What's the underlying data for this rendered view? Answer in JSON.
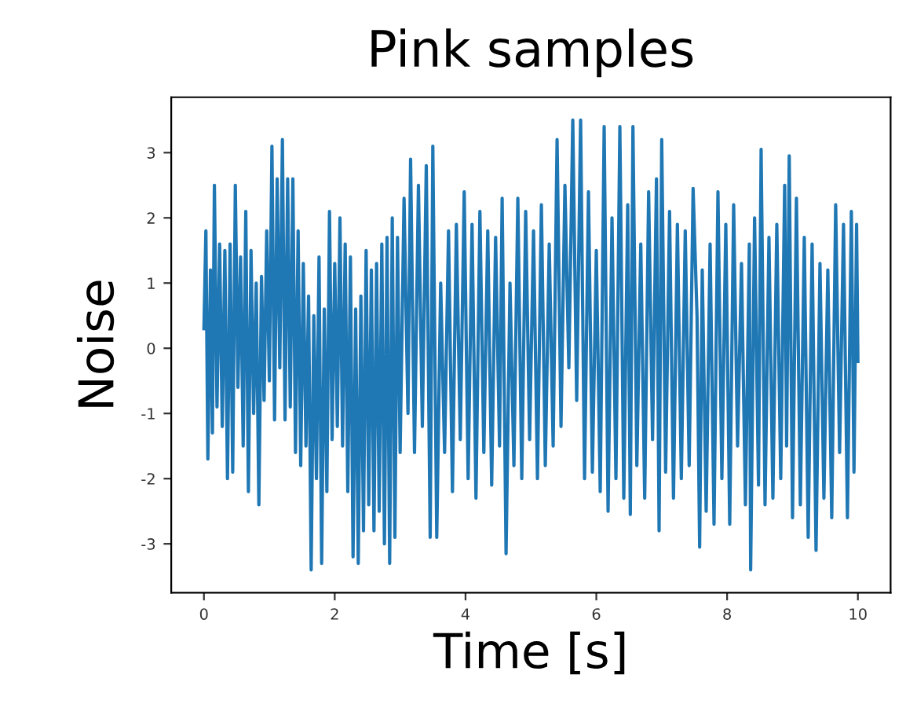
{
  "chart_data": {
    "type": "line",
    "title": "Pink samples",
    "xlabel": "Time [s]",
    "ylabel": "Noise",
    "xlim": [
      -0.5,
      10.5
    ],
    "ylim": [
      -3.75,
      3.85
    ],
    "xticks": [
      0,
      2,
      4,
      6,
      8,
      10
    ],
    "yticks": [
      -3,
      -2,
      -1,
      0,
      1,
      2,
      3
    ],
    "grid": false,
    "legend": false,
    "series": [
      {
        "color": "#1f77b4",
        "x": [
          0.0,
          0.03,
          0.06,
          0.1,
          0.13,
          0.16,
          0.2,
          0.24,
          0.28,
          0.32,
          0.36,
          0.4,
          0.44,
          0.48,
          0.52,
          0.56,
          0.6,
          0.64,
          0.68,
          0.72,
          0.76,
          0.8,
          0.84,
          0.88,
          0.92,
          0.96,
          1.0,
          1.04,
          1.08,
          1.12,
          1.16,
          1.2,
          1.24,
          1.28,
          1.32,
          1.36,
          1.4,
          1.44,
          1.48,
          1.52,
          1.56,
          1.6,
          1.64,
          1.68,
          1.72,
          1.76,
          1.8,
          1.84,
          1.88,
          1.92,
          1.96,
          2.0,
          2.04,
          2.08,
          2.12,
          2.16,
          2.2,
          2.24,
          2.28,
          2.32,
          2.36,
          2.4,
          2.44,
          2.48,
          2.52,
          2.56,
          2.6,
          2.64,
          2.68,
          2.72,
          2.76,
          2.8,
          2.84,
          2.88,
          2.92,
          2.96,
          3.0,
          3.06,
          3.12,
          3.16,
          3.22,
          3.28,
          3.34,
          3.4,
          3.46,
          3.5,
          3.56,
          3.62,
          3.68,
          3.74,
          3.8,
          3.86,
          3.92,
          3.98,
          4.04,
          4.1,
          4.16,
          4.22,
          4.28,
          4.34,
          4.4,
          4.46,
          4.52,
          4.56,
          4.62,
          4.68,
          4.74,
          4.8,
          4.86,
          4.92,
          4.98,
          5.04,
          5.1,
          5.16,
          5.22,
          5.28,
          5.34,
          5.4,
          5.46,
          5.52,
          5.58,
          5.64,
          5.7,
          5.76,
          5.82,
          5.88,
          5.94,
          6.0,
          6.06,
          6.12,
          6.18,
          6.24,
          6.3,
          6.36,
          6.42,
          6.48,
          6.52,
          6.56,
          6.62,
          6.68,
          6.74,
          6.8,
          6.86,
          6.92,
          6.96,
          7.0,
          7.06,
          7.12,
          7.18,
          7.24,
          7.3,
          7.36,
          7.42,
          7.48,
          7.54,
          7.58,
          7.62,
          7.68,
          7.74,
          7.8,
          7.86,
          7.92,
          7.98,
          8.04,
          8.1,
          8.16,
          8.22,
          8.28,
          8.34,
          8.36,
          8.42,
          8.48,
          8.52,
          8.58,
          8.64,
          8.7,
          8.76,
          8.82,
          8.88,
          8.91,
          8.95,
          9.0,
          9.06,
          9.12,
          9.18,
          9.24,
          9.3,
          9.36,
          9.42,
          9.48,
          9.54,
          9.6,
          9.66,
          9.72,
          9.78,
          9.84,
          9.9,
          9.94,
          9.98,
          10.0
        ],
        "values": [
          0.3,
          1.8,
          -1.7,
          1.2,
          -1.3,
          2.5,
          -0.9,
          1.6,
          -1.2,
          1.5,
          -2.0,
          1.6,
          -1.9,
          2.5,
          -0.6,
          1.4,
          -1.5,
          2.1,
          -2.2,
          1.5,
          -1.0,
          1.0,
          -2.4,
          1.1,
          -0.8,
          1.8,
          -0.5,
          3.1,
          -1.1,
          2.6,
          -0.3,
          3.2,
          -1.1,
          2.6,
          -0.9,
          2.6,
          -1.6,
          1.8,
          -1.8,
          1.3,
          -1.5,
          0.8,
          -3.4,
          0.5,
          -2.0,
          1.4,
          -3.3,
          0.6,
          -2.2,
          2.1,
          -1.4,
          1.3,
          -1.2,
          2.0,
          -1.5,
          1.6,
          -2.2,
          1.4,
          -3.2,
          0.6,
          -3.3,
          0.8,
          -2.8,
          1.5,
          -2.4,
          1.2,
          -2.8,
          1.3,
          -2.5,
          1.6,
          -3.0,
          1.7,
          -3.3,
          2.0,
          -2.9,
          1.7,
          -1.6,
          2.3,
          -1.0,
          2.9,
          -1.6,
          2.5,
          -1.2,
          2.8,
          -2.9,
          3.1,
          -2.9,
          1.0,
          -1.6,
          1.8,
          -2.2,
          1.9,
          -1.4,
          2.4,
          -2.0,
          1.9,
          -2.3,
          2.1,
          -1.6,
          1.8,
          -2.1,
          1.7,
          -1.5,
          2.3,
          -3.15,
          1.0,
          -1.8,
          2.3,
          -2.0,
          2.1,
          -1.4,
          1.8,
          -2.0,
          2.2,
          -1.8,
          1.6,
          -1.5,
          3.2,
          -1.2,
          2.5,
          -0.3,
          3.5,
          -0.8,
          3.5,
          -2.0,
          2.4,
          -1.9,
          1.5,
          -2.2,
          3.4,
          -2.5,
          2.0,
          -2.0,
          3.4,
          -2.3,
          2.2,
          -2.55,
          3.4,
          -1.8,
          1.6,
          -2.3,
          2.4,
          -1.4,
          2.6,
          -2.8,
          3.2,
          -1.9,
          2.1,
          -2.3,
          1.9,
          -2.0,
          1.8,
          -1.8,
          2.45,
          0.5,
          -3.05,
          1.2,
          -2.5,
          1.6,
          -2.7,
          2.4,
          -2.0,
          1.9,
          -2.7,
          2.2,
          -1.5,
          1.3,
          -2.4,
          1.6,
          -3.4,
          2.0,
          -2.1,
          3.05,
          -2.4,
          1.7,
          -2.3,
          1.9,
          -2.0,
          2.5,
          -1.5,
          2.95,
          -2.6,
          2.3,
          -2.4,
          1.7,
          -2.9,
          1.6,
          -3.1,
          1.3,
          -2.3,
          1.2,
          -2.6,
          2.2,
          -1.6,
          1.9,
          -2.6,
          2.1,
          -1.9,
          1.9,
          -0.2
        ]
      }
    ]
  }
}
